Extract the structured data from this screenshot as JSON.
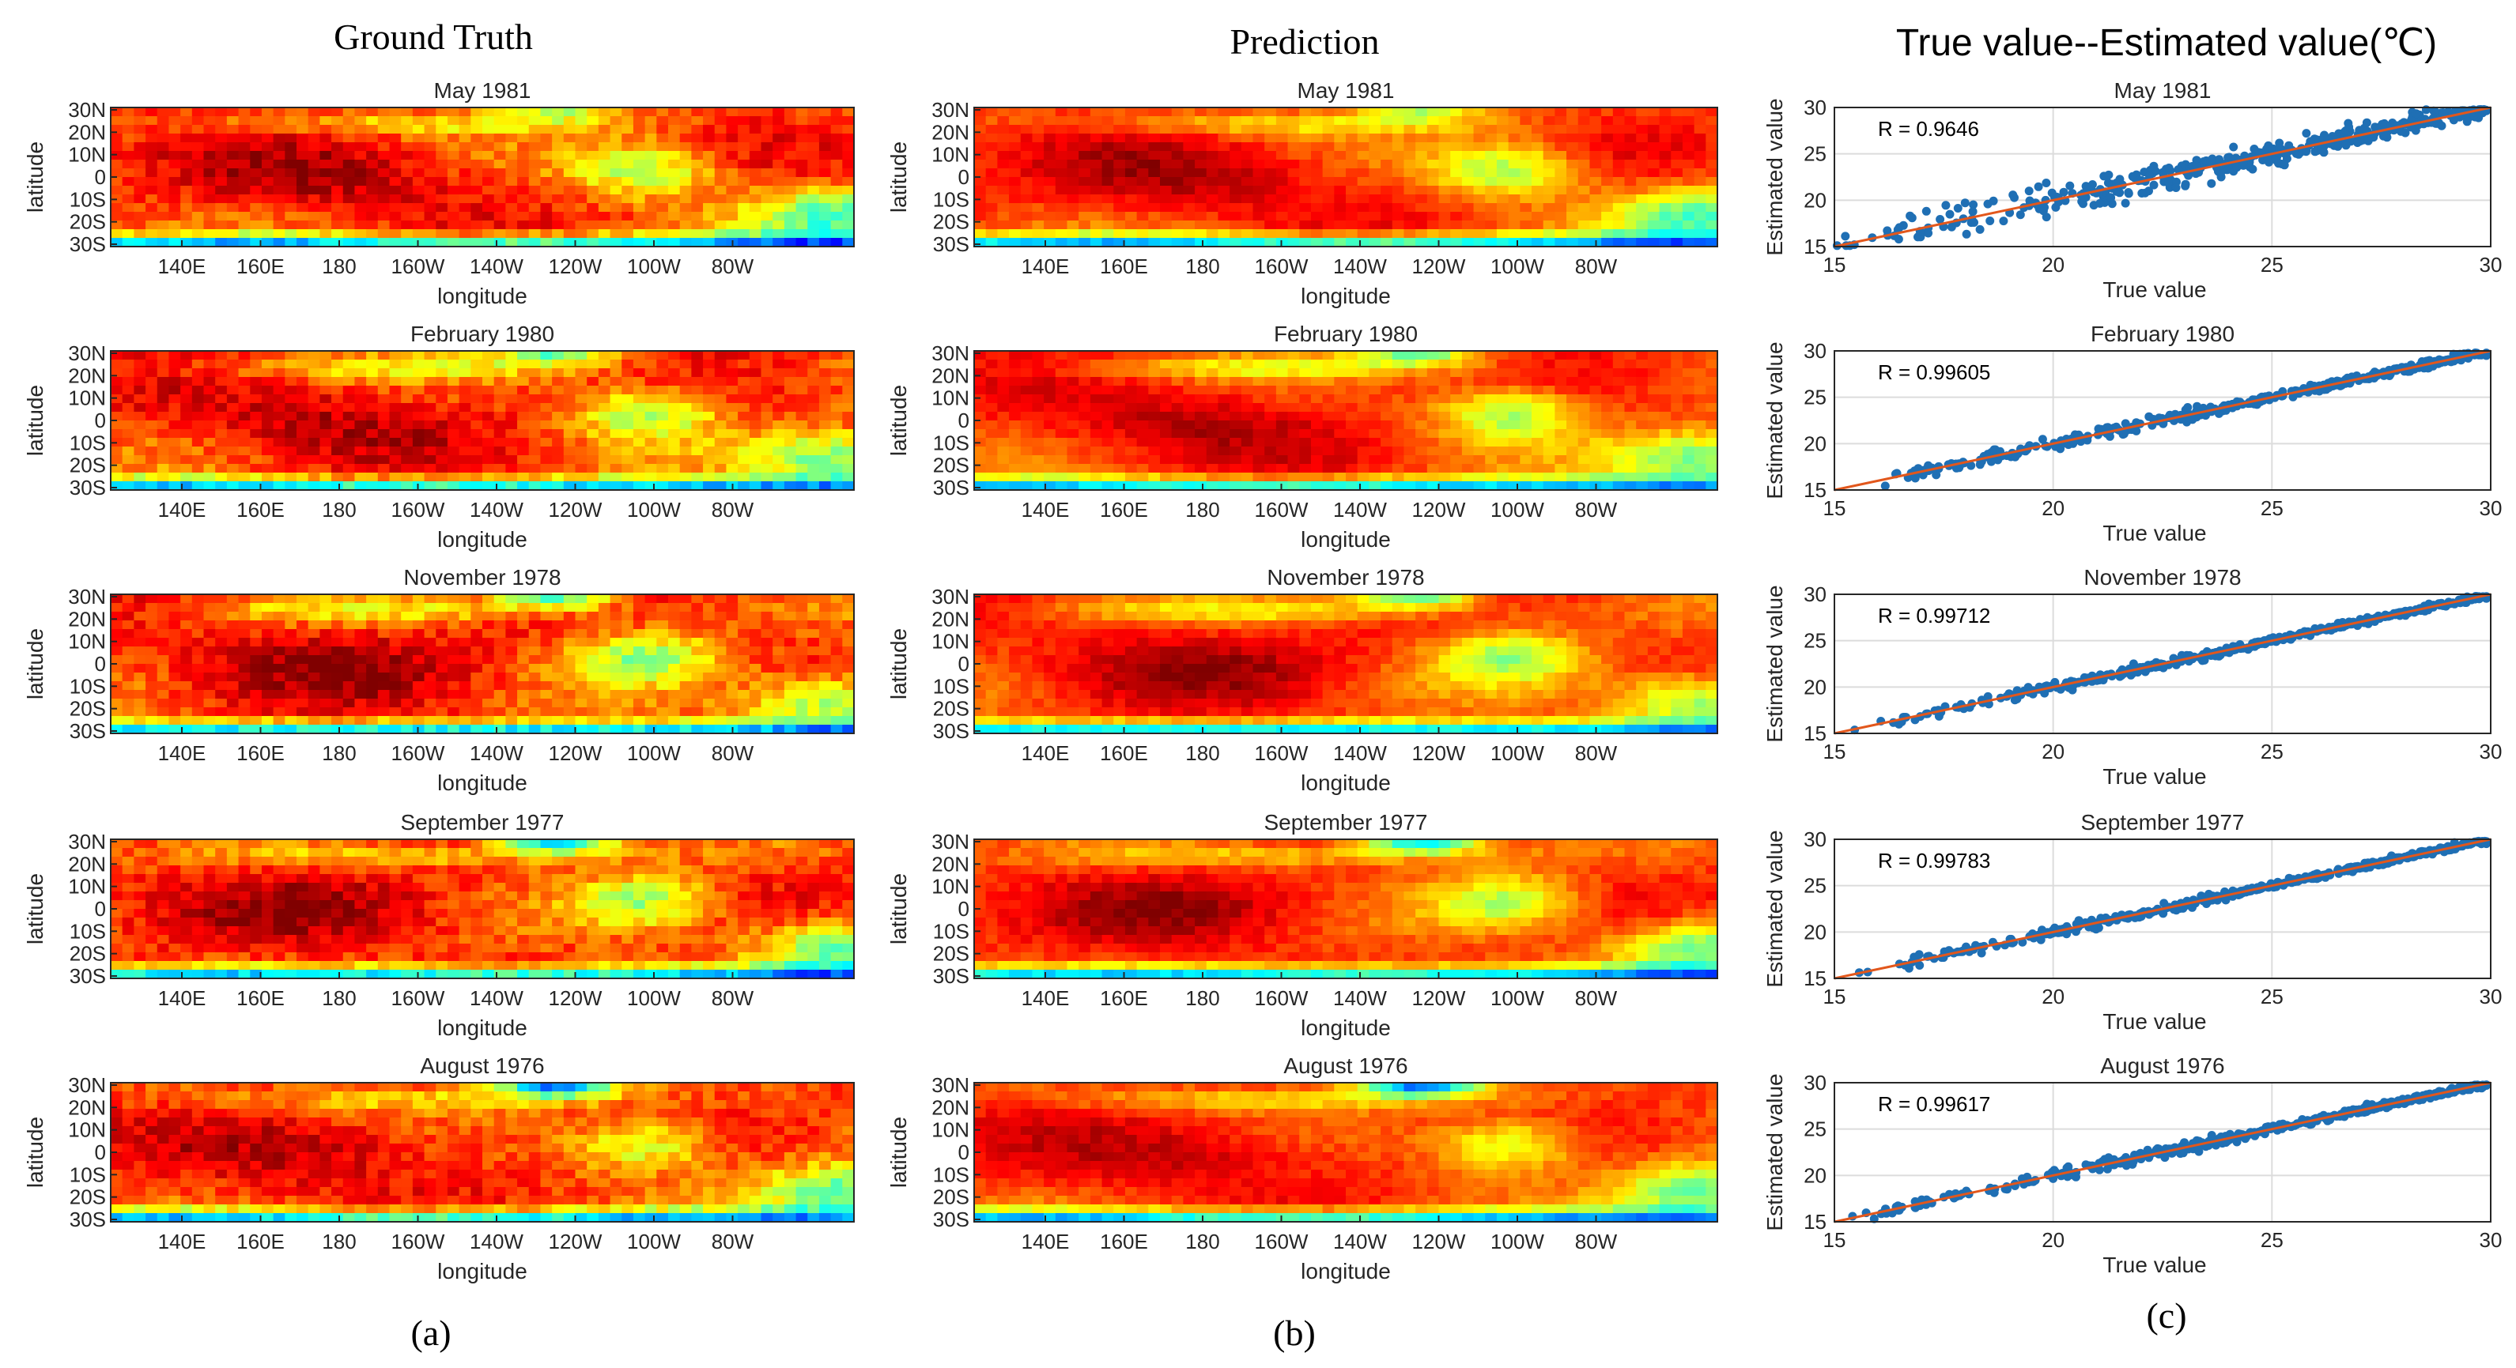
{
  "column_titles": {
    "ground_truth": "Ground Truth",
    "prediction": "Prediction",
    "scatter": "True value--Estimated value(℃)"
  },
  "panel_labels": [
    "(a)",
    "(b)",
    "(c)"
  ],
  "colors": {
    "jet_dark_blue": "#00008f",
    "jet_dark_red": "#800000",
    "scatter_points": "#1f6fb4",
    "fit_line": "#e2571c",
    "grid": "#dcdcdc"
  },
  "chart_data": [
    {
      "type": "heatmap",
      "panel": "a",
      "column": "Ground Truth",
      "colormap": "jet",
      "xlabel": "longitude",
      "ylabel": "latitude",
      "xticklabels": [
        "140E",
        "160E",
        "180",
        "160W",
        "140W",
        "120W",
        "100W",
        "80W"
      ],
      "yticklabels": [
        "30N",
        "20N",
        "10N",
        "0",
        "10S",
        "20S",
        "30S"
      ],
      "subplot_titles": [
        "May 1981",
        "February 1980",
        "November 1978",
        "September 1977",
        "August 1976"
      ]
    },
    {
      "type": "heatmap",
      "panel": "b",
      "column": "Prediction",
      "colormap": "jet",
      "xlabel": "longitude",
      "ylabel": "latitude",
      "xticklabels": [
        "140E",
        "160E",
        "180",
        "160W",
        "140W",
        "120W",
        "100W",
        "80W"
      ],
      "yticklabels": [
        "30N",
        "20N",
        "10N",
        "0",
        "10S",
        "20S",
        "30S"
      ],
      "subplot_titles": [
        "May 1981",
        "February 1980",
        "November 1978",
        "September 1977",
        "August 1976"
      ]
    },
    {
      "type": "scatter",
      "panel": "c",
      "xlabel": "True value",
      "ylabel": "Estimated value",
      "xlim": [
        15,
        30
      ],
      "ylim": [
        15,
        30
      ],
      "xticks": [
        15,
        20,
        25,
        30
      ],
      "yticks": [
        15,
        20,
        25,
        30
      ],
      "grid": true,
      "fit_line": [
        [
          15,
          15
        ],
        [
          30,
          30
        ]
      ],
      "subplots": [
        {
          "title": "May 1981",
          "r_label": "R = 0.9646",
          "scatter_spread": 1.0
        },
        {
          "title": "February 1980",
          "r_label": "R = 0.99605",
          "scatter_spread": 0.35
        },
        {
          "title": "November 1978",
          "r_label": "R = 0.99712",
          "scatter_spread": 0.3
        },
        {
          "title": "September 1977",
          "r_label": "R = 0.99783",
          "scatter_spread": 0.28
        },
        {
          "title": "August 1976",
          "r_label": "R = 0.99617",
          "scatter_spread": 0.33
        }
      ]
    }
  ]
}
